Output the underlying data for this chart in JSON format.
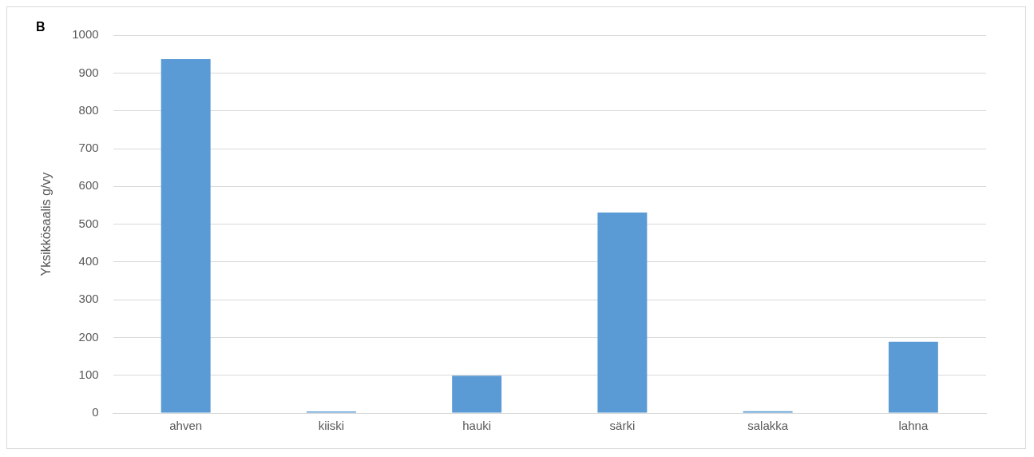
{
  "chart_data": {
    "type": "bar",
    "title": "B",
    "ylabel": "Yksikkösaalis g/vy",
    "categories": [
      "ahven",
      "kiiski",
      "hauki",
      "särki",
      "salakka",
      "lahna"
    ],
    "values": [
      937,
      4,
      99,
      531,
      5,
      189
    ],
    "color": "#5b9bd5",
    "ylim": [
      0,
      1000
    ],
    "yticks": [
      0,
      100,
      200,
      300,
      400,
      500,
      600,
      700,
      800,
      900,
      1000
    ],
    "grid": "y",
    "legend": false
  }
}
